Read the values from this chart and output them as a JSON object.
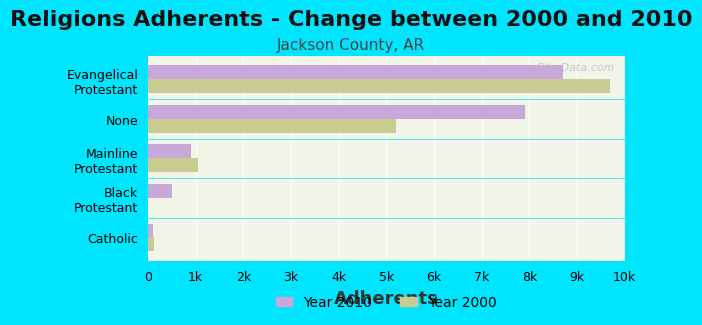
{
  "title": "Religions Adherents - Change between 2000 and 2010",
  "subtitle": "Jackson County, AR",
  "xlabel": "Adherents",
  "categories": [
    "Catholic",
    "Black\nProtestant",
    "Mainline\nProtestant",
    "None",
    "Evangelical\nProtestant"
  ],
  "year2010": [
    100,
    500,
    900,
    7900,
    8700
  ],
  "year2000": [
    130,
    0,
    1050,
    5200,
    9700
  ],
  "color2010": "#c8a8d8",
  "color2000": "#c8cc90",
  "background_outer": "#00e5ff",
  "background_inner": "#f0f5e8",
  "xlim": [
    0,
    10000
  ],
  "xticks": [
    0,
    1000,
    2000,
    3000,
    4000,
    5000,
    6000,
    7000,
    8000,
    9000,
    10000
  ],
  "xticklabels": [
    "0",
    "1k",
    "2k",
    "3k",
    "4k",
    "5k",
    "6k",
    "7k",
    "8k",
    "9k",
    "10k"
  ],
  "watermark": "City-Data.com",
  "title_fontsize": 16,
  "subtitle_fontsize": 11,
  "xlabel_fontsize": 13,
  "bar_height": 0.35
}
